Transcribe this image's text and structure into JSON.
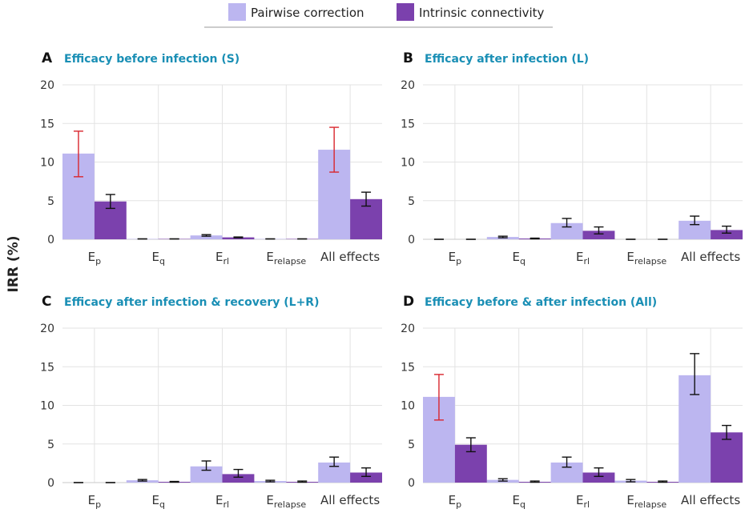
{
  "ylabel": "IRR (%)",
  "colors": {
    "pairwise": "#bcb6f0",
    "intrinsic": "#7b41ad",
    "err_red": "#d9262d",
    "err_black": "#111111",
    "title": "#1a8fb5"
  },
  "legend": [
    {
      "key": "pairwise",
      "label": "Pairwise correction"
    },
    {
      "key": "intrinsic",
      "label": "Intrinsic connectivity"
    }
  ],
  "chart_data": [
    {
      "type": "bar",
      "panel": "A",
      "title": "Efficacy before infection (S)",
      "categories": [
        {
          "main": "E",
          "sub": "p"
        },
        {
          "main": "E",
          "sub": "q"
        },
        {
          "main": "E",
          "sub": "rl"
        },
        {
          "main": "E",
          "sub": "relapse"
        },
        {
          "main": "All effects",
          "sub": ""
        }
      ],
      "ylim": [
        0,
        20
      ],
      "yticks": [
        0,
        5,
        10,
        15,
        20
      ],
      "series": [
        {
          "name": "Pairwise correction",
          "values": [
            11.1,
            0.05,
            0.5,
            0.05,
            11.6
          ],
          "err_low": [
            8.1,
            0.05,
            0.4,
            0.05,
            8.7
          ],
          "err_high": [
            14.0,
            0.05,
            0.6,
            0.05,
            14.5
          ],
          "err_color": [
            "red",
            "black",
            "black",
            "black",
            "red"
          ]
        },
        {
          "name": "Intrinsic connectivity",
          "values": [
            4.9,
            0.05,
            0.25,
            0.05,
            5.2
          ],
          "err_low": [
            4.0,
            0.05,
            0.2,
            0.05,
            4.3
          ],
          "err_high": [
            5.8,
            0.05,
            0.3,
            0.05,
            6.1
          ],
          "err_color": [
            "black",
            "black",
            "black",
            "black",
            "black"
          ]
        }
      ]
    },
    {
      "type": "bar",
      "panel": "B",
      "title": "Efficacy after infection (L)",
      "categories": [
        {
          "main": "E",
          "sub": "p"
        },
        {
          "main": "E",
          "sub": "q"
        },
        {
          "main": "E",
          "sub": "rl"
        },
        {
          "main": "E",
          "sub": "relapse"
        },
        {
          "main": "All effects",
          "sub": ""
        }
      ],
      "ylim": [
        0,
        20
      ],
      "yticks": [
        0,
        5,
        10,
        15,
        20
      ],
      "series": [
        {
          "name": "Pairwise correction",
          "values": [
            0.0,
            0.3,
            2.1,
            0.0,
            2.4
          ],
          "err_low": [
            0.0,
            0.2,
            1.6,
            0.0,
            1.9
          ],
          "err_high": [
            0.0,
            0.4,
            2.7,
            0.0,
            3.0
          ],
          "err_color": [
            "black",
            "black",
            "black",
            "black",
            "black"
          ]
        },
        {
          "name": "Intrinsic connectivity",
          "values": [
            0.0,
            0.1,
            1.1,
            0.0,
            1.2
          ],
          "err_low": [
            0.0,
            0.05,
            0.7,
            0.0,
            0.8
          ],
          "err_high": [
            0.0,
            0.15,
            1.6,
            0.0,
            1.7
          ],
          "err_color": [
            "black",
            "black",
            "black",
            "black",
            "black"
          ]
        }
      ]
    },
    {
      "type": "bar",
      "panel": "C",
      "title": "Efficacy after infection & recovery (L+R)",
      "categories": [
        {
          "main": "E",
          "sub": "p"
        },
        {
          "main": "E",
          "sub": "q"
        },
        {
          "main": "E",
          "sub": "rl"
        },
        {
          "main": "E",
          "sub": "relapse"
        },
        {
          "main": "All effects",
          "sub": ""
        }
      ],
      "ylim": [
        0,
        20
      ],
      "yticks": [
        0,
        5,
        10,
        15,
        20
      ],
      "series": [
        {
          "name": "Pairwise correction",
          "values": [
            0.0,
            0.3,
            2.1,
            0.2,
            2.6
          ],
          "err_low": [
            0.0,
            0.2,
            1.6,
            0.1,
            2.1
          ],
          "err_high": [
            0.0,
            0.4,
            2.8,
            0.3,
            3.3
          ],
          "err_color": [
            "black",
            "black",
            "black",
            "black",
            "black"
          ]
        },
        {
          "name": "Intrinsic connectivity",
          "values": [
            0.0,
            0.1,
            1.1,
            0.1,
            1.3
          ],
          "err_low": [
            0.0,
            0.05,
            0.7,
            0.05,
            0.8
          ],
          "err_high": [
            0.0,
            0.15,
            1.7,
            0.2,
            1.9
          ],
          "err_color": [
            "black",
            "black",
            "black",
            "black",
            "black"
          ]
        }
      ]
    },
    {
      "type": "bar",
      "panel": "D",
      "title": "Efficacy before & after infection (All)",
      "categories": [
        {
          "main": "E",
          "sub": "p"
        },
        {
          "main": "E",
          "sub": "q"
        },
        {
          "main": "E",
          "sub": "rl"
        },
        {
          "main": "E",
          "sub": "relapse"
        },
        {
          "main": "All effects",
          "sub": ""
        }
      ],
      "ylim": [
        0,
        20
      ],
      "yticks": [
        0,
        5,
        10,
        15,
        20
      ],
      "series": [
        {
          "name": "Pairwise correction",
          "values": [
            11.1,
            0.35,
            2.6,
            0.25,
            13.9
          ],
          "err_low": [
            8.1,
            0.2,
            2.0,
            0.1,
            11.4
          ],
          "err_high": [
            14.0,
            0.5,
            3.3,
            0.4,
            16.7
          ],
          "err_color": [
            "red",
            "black",
            "black",
            "black",
            "black"
          ]
        },
        {
          "name": "Intrinsic connectivity",
          "values": [
            4.9,
            0.1,
            1.3,
            0.1,
            6.5
          ],
          "err_low": [
            4.0,
            0.05,
            0.8,
            0.05,
            5.6
          ],
          "err_high": [
            5.8,
            0.2,
            1.9,
            0.2,
            7.4
          ],
          "err_color": [
            "black",
            "black",
            "black",
            "black",
            "black"
          ]
        }
      ]
    }
  ]
}
